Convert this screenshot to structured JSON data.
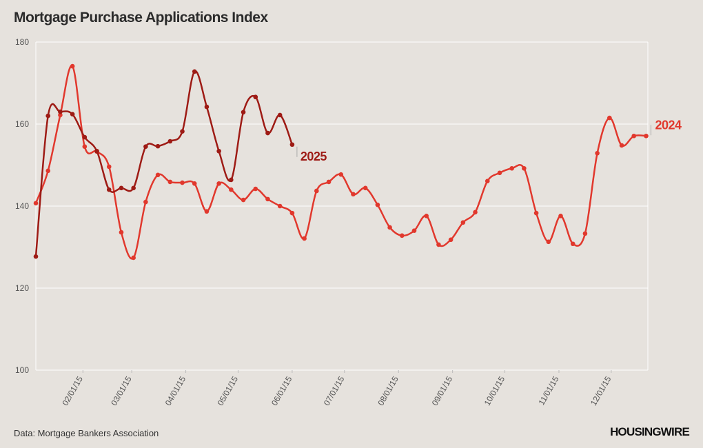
{
  "chart_data": {
    "type": "line",
    "title": "Mortgage Purchase Applications Index",
    "source": "Data: Mortgage Bankers Association",
    "brand": "HOUSINGWIRE",
    "xlim": [
      4,
      355
    ],
    "xticks": [
      {
        "value": 31,
        "label": "02/01/15"
      },
      {
        "value": 59,
        "label": "03/01/15"
      },
      {
        "value": 90,
        "label": "04/01/15"
      },
      {
        "value": 120,
        "label": "05/01/15"
      },
      {
        "value": 151,
        "label": "06/01/15"
      },
      {
        "value": 181,
        "label": "07/01/15"
      },
      {
        "value": 212,
        "label": "08/01/15"
      },
      {
        "value": 243,
        "label": "09/01/15"
      },
      {
        "value": 273,
        "label": "10/01/15"
      },
      {
        "value": 304,
        "label": "11/01/15"
      },
      {
        "value": 334,
        "label": "12/01/15"
      }
    ],
    "ylim": [
      100,
      180
    ],
    "yticks": [
      100,
      120,
      140,
      160,
      180
    ],
    "grid": true,
    "x": [
      4,
      11,
      18,
      25,
      32,
      39,
      46,
      53,
      60,
      67,
      74,
      81,
      88,
      95,
      102,
      109,
      116,
      123,
      130,
      137,
      144,
      151,
      158,
      165,
      172,
      179,
      186,
      193,
      200,
      207,
      214,
      221,
      228,
      235,
      242,
      249,
      256,
      263,
      270,
      277,
      284,
      291,
      298,
      305,
      312,
      319,
      326,
      333,
      340,
      347,
      354
    ],
    "series": [
      {
        "name": "2024",
        "color": "#e1382d",
        "values": [
          140.7,
          148.6,
          162.2,
          174.1,
          154.5,
          153.3,
          149.6,
          133.6,
          127.4,
          141.0,
          147.6,
          145.9,
          145.7,
          145.5,
          138.7,
          145.5,
          144.0,
          141.5,
          144.2,
          141.7,
          140.0,
          138.3,
          132.1,
          143.7,
          145.9,
          147.7,
          142.9,
          144.4,
          140.3,
          134.8,
          132.8,
          134.0,
          137.6,
          130.6,
          131.8,
          136.0,
          138.5,
          146.1,
          148.1,
          149.2,
          149.2,
          138.3,
          131.3,
          137.6,
          130.8,
          133.3,
          152.9,
          161.5,
          154.8,
          157.1,
          157.1
        ]
      },
      {
        "name": "2025",
        "color": "#9e1b15",
        "values": [
          127.7,
          162.0,
          163.0,
          162.4,
          156.8,
          153.4,
          144.0,
          144.4,
          144.4,
          154.5,
          154.6,
          155.8,
          158.2,
          172.8,
          164.2,
          153.4,
          146.4,
          162.9,
          166.6,
          157.8,
          162.2,
          155.0,
          null,
          null,
          null,
          null,
          null,
          null,
          null,
          null,
          null,
          null,
          null,
          null,
          null,
          null,
          null,
          null,
          null,
          null,
          null,
          null,
          null,
          null,
          null,
          null,
          null,
          null,
          null,
          null,
          null
        ]
      }
    ]
  }
}
